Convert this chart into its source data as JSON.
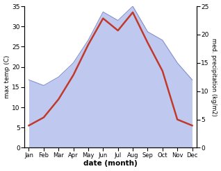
{
  "months": [
    "Jan",
    "Feb",
    "Mar",
    "Apr",
    "May",
    "Jun",
    "Jul",
    "Aug",
    "Sep",
    "Oct",
    "Nov",
    "Dec"
  ],
  "temperature": [
    5.5,
    7.5,
    12.0,
    18.0,
    25.5,
    32.0,
    29.0,
    33.5,
    26.0,
    19.0,
    7.0,
    5.5
  ],
  "precipitation": [
    12.0,
    11.0,
    12.5,
    15.0,
    19.0,
    24.0,
    22.5,
    25.0,
    20.5,
    19.0,
    15.0,
    12.0
  ],
  "temp_color": "#c0392b",
  "precip_fill_color": "#b8c4ee",
  "precip_line_color": "#8090cc",
  "ylim_left": [
    0,
    35
  ],
  "ylim_right": [
    0,
    25
  ],
  "yticks_left": [
    0,
    5,
    10,
    15,
    20,
    25,
    30,
    35
  ],
  "yticks_right": [
    0,
    5,
    10,
    15,
    20,
    25
  ],
  "xlabel": "date (month)",
  "ylabel_left": "max temp (C)",
  "ylabel_right": "med. precipitation (kg/m2)",
  "bg_color": "#ffffff"
}
